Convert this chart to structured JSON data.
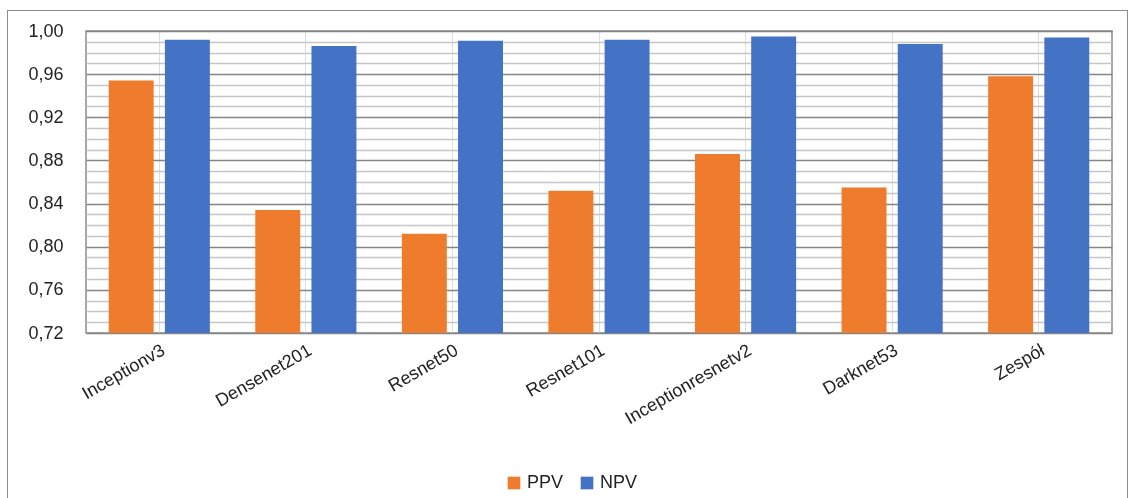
{
  "chart_data": {
    "type": "bar",
    "categories": [
      "Inceptionv3",
      "Densenet201",
      "Resnet50",
      "Resnet101",
      "Inceptionresnetv2",
      "Darknet53",
      "Zespół"
    ],
    "series": [
      {
        "name": "PPV",
        "color": "#ef7b2d",
        "values": [
          0.954,
          0.834,
          0.812,
          0.852,
          0.886,
          0.855,
          0.958
        ]
      },
      {
        "name": "NPV",
        "color": "#4472c4",
        "values": [
          0.992,
          0.986,
          0.991,
          0.992,
          0.995,
          0.988,
          0.994
        ]
      }
    ],
    "ylim": [
      0.72,
      1.0
    ],
    "yticks": [
      {
        "value": 0.72,
        "label": "0,72"
      },
      {
        "value": 0.73,
        "label": null
      },
      {
        "value": 0.74,
        "label": null
      },
      {
        "value": 0.75,
        "label": null
      },
      {
        "value": 0.76,
        "label": "0,76"
      },
      {
        "value": 0.77,
        "label": null
      },
      {
        "value": 0.78,
        "label": null
      },
      {
        "value": 0.79,
        "label": null
      },
      {
        "value": 0.8,
        "label": "0,80"
      },
      {
        "value": 0.81,
        "label": null
      },
      {
        "value": 0.82,
        "label": null
      },
      {
        "value": 0.83,
        "label": null
      },
      {
        "value": 0.84,
        "label": "0,84"
      },
      {
        "value": 0.85,
        "label": null
      },
      {
        "value": 0.86,
        "label": null
      },
      {
        "value": 0.87,
        "label": null
      },
      {
        "value": 0.88,
        "label": "0,88"
      },
      {
        "value": 0.89,
        "label": null
      },
      {
        "value": 0.9,
        "label": null
      },
      {
        "value": 0.91,
        "label": null
      },
      {
        "value": 0.92,
        "label": "0,92"
      },
      {
        "value": 0.93,
        "label": null
      },
      {
        "value": 0.94,
        "label": null
      },
      {
        "value": 0.95,
        "label": null
      },
      {
        "value": 0.96,
        "label": "0,96"
      },
      {
        "value": 0.97,
        "label": null
      },
      {
        "value": 0.98,
        "label": null
      },
      {
        "value": 0.99,
        "label": null
      },
      {
        "value": 1.0,
        "label": "1,00"
      }
    ],
    "grid": true,
    "legend": "bottom"
  }
}
